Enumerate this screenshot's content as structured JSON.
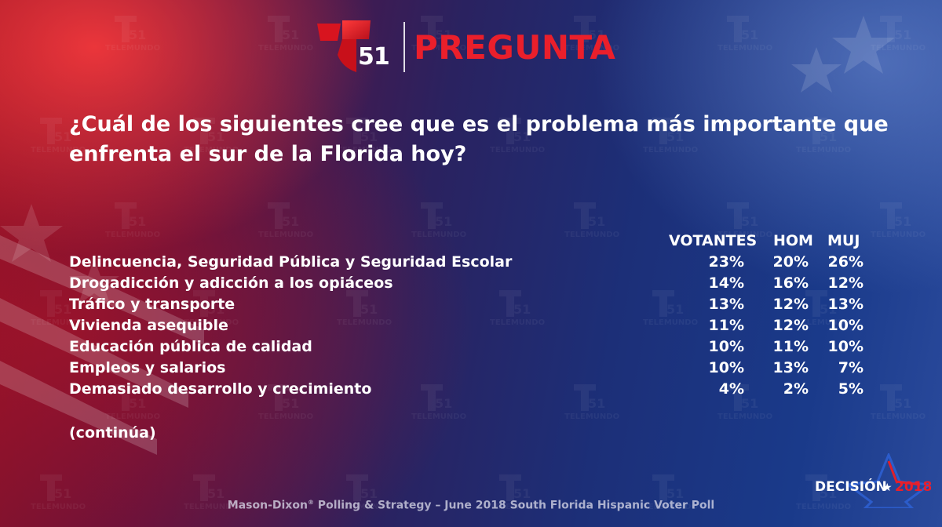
{
  "header": {
    "logo_number": "51",
    "title": "PREGUNTA"
  },
  "question": "¿Cuál de los siguientes cree que es el problema más importante que enfrenta el sur de la Florida hoy?",
  "watermark": {
    "number": "51",
    "text": "TELEMUNDO"
  },
  "chart_data": {
    "type": "table",
    "columns": [
      "VOTANTES",
      "HOM",
      "MUJ"
    ],
    "rows": [
      {
        "label": "Delincuencia, Seguridad Pública y Seguridad Escolar",
        "values": [
          "23%",
          "20%",
          "26%"
        ]
      },
      {
        "label": "Drogadicción y adicción a los opiáceos",
        "values": [
          "14%",
          "16%",
          "12%"
        ]
      },
      {
        "label": "Tráfico y transporte",
        "values": [
          "13%",
          "12%",
          "13%"
        ]
      },
      {
        "label": "Vivienda asequible",
        "values": [
          "11%",
          "12%",
          "10%"
        ]
      },
      {
        "label": "Educación pública de calidad",
        "values": [
          "10%",
          "11%",
          "10%"
        ]
      },
      {
        "label": "Empleos y salarios",
        "values": [
          "10%",
          "13%",
          "7%"
        ]
      },
      {
        "label": "Demasiado desarrollo y crecimiento",
        "values": [
          "4%",
          "2%",
          "5%"
        ]
      }
    ]
  },
  "continued_note": "(continúa)",
  "footer": {
    "source": "Mason-Dixon",
    "reg": "®",
    "rest": " Polling & Strategy – June 2018 South Florida Hispanic Voter Poll"
  },
  "badge": {
    "word": "DECISIÓN",
    "star": "★",
    "year": "2018"
  },
  "colors": {
    "accent_red": "#ea1f2b",
    "text": "#ffffff"
  }
}
